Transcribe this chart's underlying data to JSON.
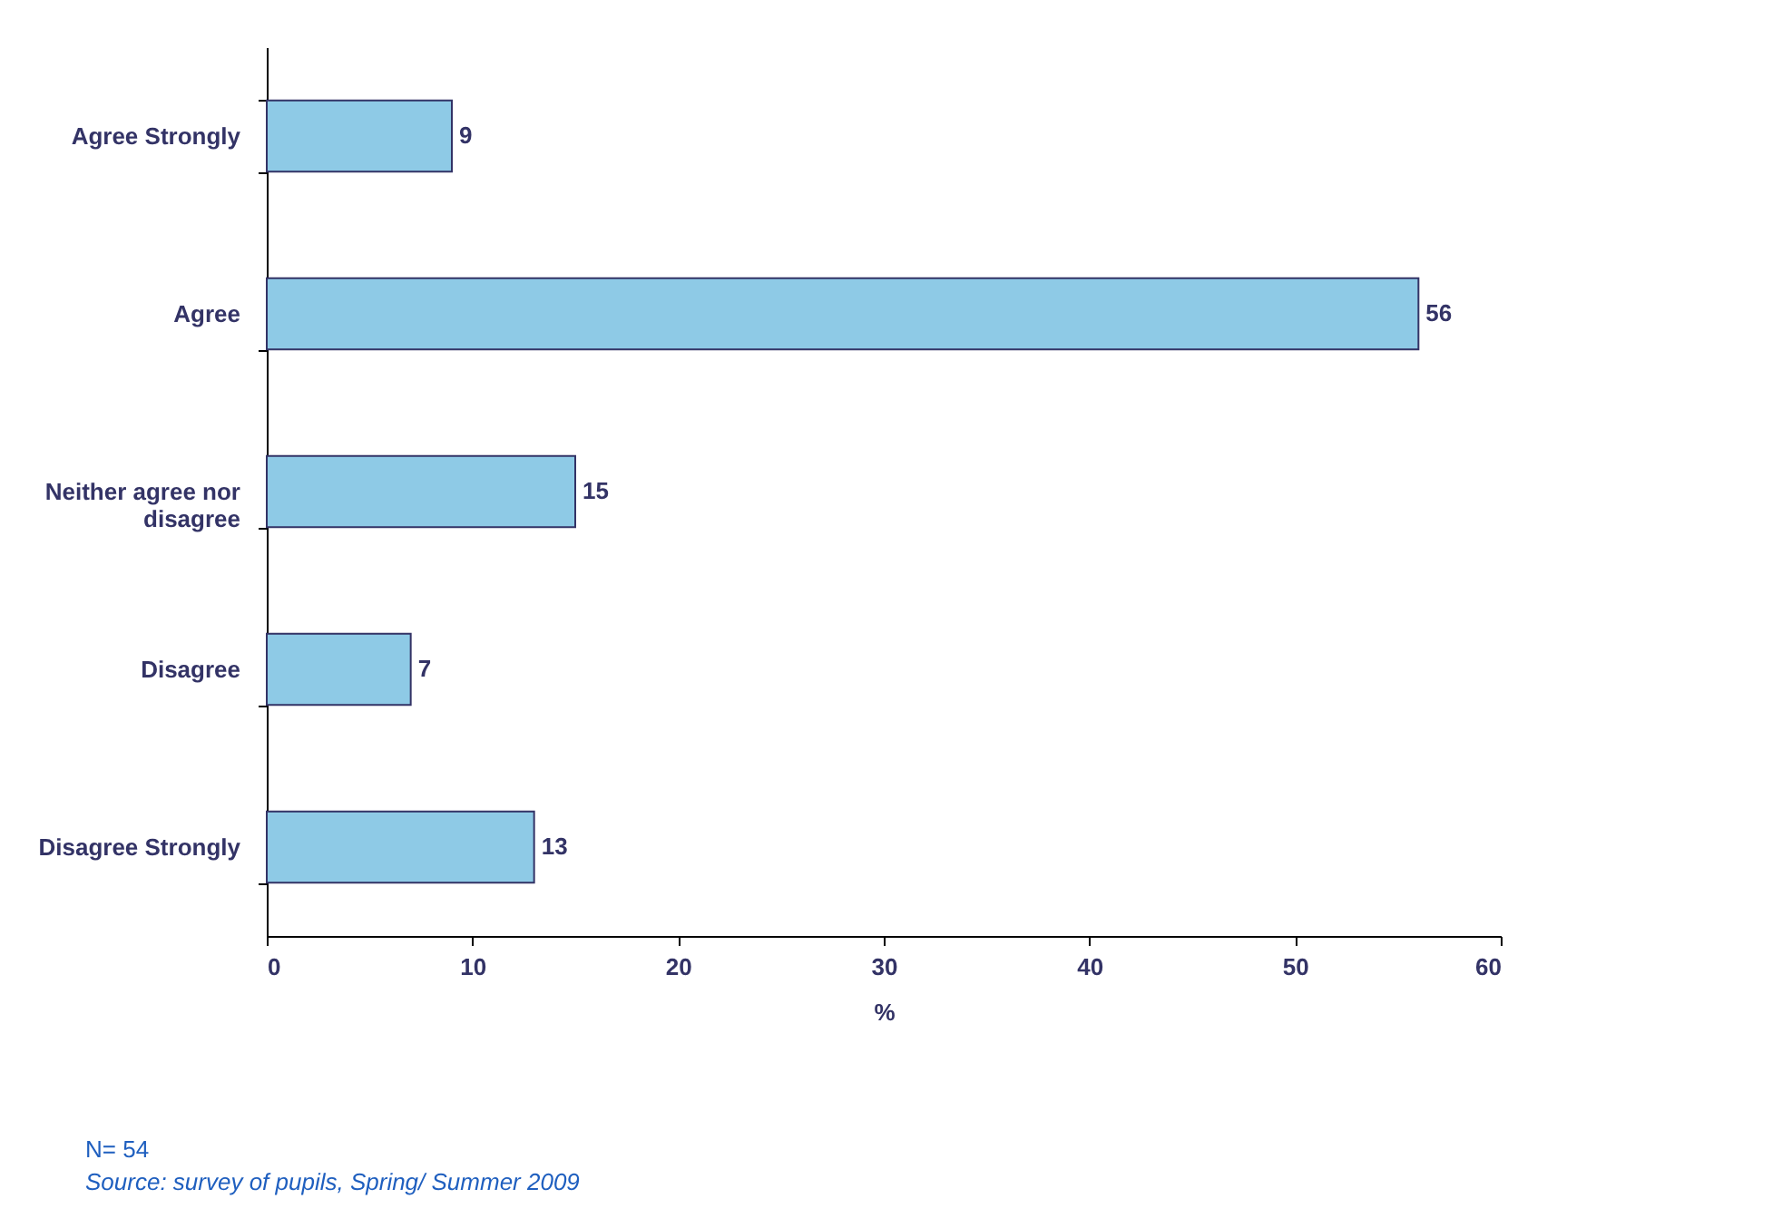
{
  "chart_data": {
    "type": "bar",
    "orientation": "horizontal",
    "categories": [
      "Agree Strongly",
      "Agree",
      "Neither agree nor disagree",
      "Disagree",
      "Disagree Strongly"
    ],
    "values": [
      9,
      56,
      15,
      7,
      13
    ],
    "color": "#8ecae6",
    "xlim": [
      0,
      60
    ],
    "xticks": [
      0,
      10,
      20,
      30,
      40,
      50,
      60
    ],
    "xlabel": "%",
    "data_labels": true,
    "grid": false,
    "annotations": [
      "N= 54",
      "Source: survey of pupils, Spring/ Summer 2009"
    ]
  }
}
